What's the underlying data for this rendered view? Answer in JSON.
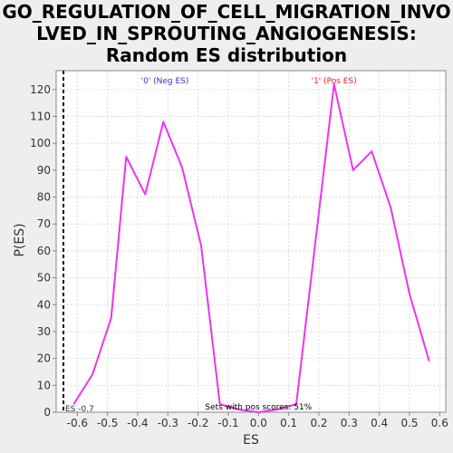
{
  "chart_data": {
    "type": "line",
    "title_lines": [
      "GO_REGULATION_OF_CELL_MIGRATION_INVO",
      "LVED_IN_SPROUTING_ANGIOGENESIS:",
      "Random ES distribution"
    ],
    "xlabel": "ES",
    "ylabel": "P(ES)",
    "xlim": [
      -0.67,
      0.62
    ],
    "ylim": [
      0,
      127
    ],
    "x_ticks": [
      -0.6,
      -0.5,
      -0.4,
      -0.3,
      -0.2,
      -0.1,
      0.0,
      0.1,
      0.2,
      0.3,
      0.4,
      0.5,
      0.6
    ],
    "x_tick_labels": [
      "-0.6",
      "-0.5",
      "-0.4",
      "-0.3",
      "-0.2",
      "-0.1",
      "0.0",
      "0.1",
      "0.2",
      "0.3",
      "0.4",
      "0.5",
      "0.6"
    ],
    "y_ticks": [
      0,
      10,
      20,
      30,
      40,
      50,
      60,
      70,
      80,
      90,
      100,
      110,
      120
    ],
    "y_tick_labels": [
      "0",
      "10",
      "20",
      "30",
      "40",
      "50",
      "60",
      "70",
      "80",
      "90",
      "100",
      "110",
      "120"
    ],
    "grid": true,
    "series": [
      {
        "color": "#ee33ee",
        "x": [
          -0.612,
          -0.55,
          -0.488,
          -0.438,
          -0.375,
          -0.315,
          -0.253,
          -0.19,
          -0.128,
          -0.065,
          0.0,
          0.063,
          0.125,
          0.25,
          0.313,
          0.375,
          0.438,
          0.5,
          0.565
        ],
        "y": [
          3,
          14,
          35,
          95,
          81,
          108,
          91,
          62,
          3,
          1,
          0,
          1,
          3,
          122,
          90,
          97,
          76,
          44,
          19
        ]
      }
    ],
    "vline": {
      "x": -0.67,
      "label": "ES -0.7",
      "color": "#000000"
    },
    "annotations": {
      "neg": {
        "text": "'0' (Neg ES)",
        "color": "#3333cc"
      },
      "pos": {
        "text": "'1' (Pos ES)",
        "color": "#dd2222"
      },
      "pos_scores": {
        "text": "Sets with pos scores: 51%",
        "color": "#000000"
      }
    },
    "colors": {
      "background": "#eeeeee",
      "plot_background": "#ffffff",
      "grid": "#dddddd",
      "axis": "#888888"
    }
  }
}
